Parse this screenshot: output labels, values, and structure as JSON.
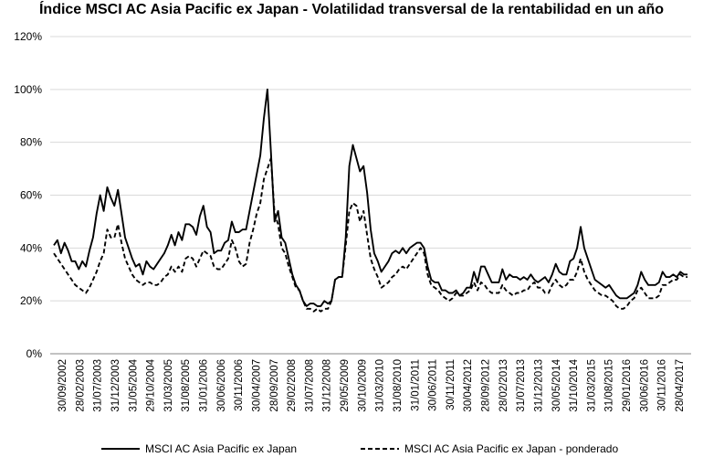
{
  "chart_data": {
    "type": "line",
    "title": "Índice MSCI AC Asia Pacific ex Japan - Volatilidad transversal de la rentabilidad en un año",
    "xlabel": "",
    "ylabel": "",
    "ylim": [
      0,
      120
    ],
    "yticks": [
      "0%",
      "20%",
      "40%",
      "60%",
      "80%",
      "100%",
      "120%"
    ],
    "xtick_labels": [
      "30/09/2002",
      "28/02/2003",
      "31/07/2003",
      "31/12/2003",
      "31/05/2004",
      "29/10/2004",
      "31/03/2005",
      "31/08/2005",
      "31/01/2006",
      "30/06/2006",
      "30/11/2006",
      "30/04/2007",
      "28/09/2007",
      "29/02/2008",
      "31/07/2008",
      "31/12/2008",
      "29/05/2009",
      "30/10/2009",
      "31/03/2010",
      "31/08/2010",
      "31/01/2011",
      "30/06/2011",
      "30/11/2011",
      "30/04/2012",
      "28/09/2012",
      "28/02/2013",
      "31/07/2013",
      "31/12/2013",
      "30/05/2014",
      "31/10/2014",
      "31/03/2015",
      "31/08/2015",
      "29/01/2016",
      "30/06/2016",
      "30/11/2016",
      "28/04/2017"
    ],
    "grid": true,
    "legend_position": "bottom",
    "series": [
      {
        "name": "MSCI AC Asia Pacific ex Japan",
        "style": "solid",
        "color": "#000000",
        "values": [
          41,
          43,
          38,
          42,
          39,
          35,
          35,
          32,
          35,
          33,
          39,
          44,
          53,
          60,
          54,
          63,
          59,
          56,
          62,
          53,
          44,
          40,
          36,
          33,
          34,
          30,
          35,
          33,
          32,
          34,
          36,
          38,
          41,
          45,
          41,
          46,
          43,
          49,
          49,
          48,
          45,
          52,
          56,
          48,
          46,
          38,
          39,
          39,
          42,
          43,
          50,
          46,
          46,
          47,
          47,
          54,
          61,
          68,
          75,
          89,
          100,
          76,
          50,
          54,
          44,
          42,
          36,
          30,
          26,
          24,
          20,
          18,
          19,
          19,
          18,
          18,
          20,
          19,
          20,
          28,
          29,
          29,
          44,
          71,
          79,
          74,
          69,
          71,
          61,
          47,
          38,
          35,
          31,
          33,
          35,
          38,
          39,
          38,
          40,
          38,
          40,
          41,
          42,
          42,
          40,
          33,
          28,
          27,
          27,
          24,
          24,
          23,
          23,
          24,
          22,
          23,
          25,
          25,
          31,
          27,
          33,
          33,
          30,
          27,
          27,
          27,
          32,
          28,
          30,
          29,
          29,
          28,
          29,
          28,
          30,
          28,
          27,
          28,
          29,
          27,
          30,
          34,
          31,
          30,
          30,
          35,
          36,
          40,
          48,
          40,
          36,
          32,
          28,
          27,
          26,
          25,
          26,
          24,
          22,
          21,
          21,
          21,
          22,
          23,
          26,
          31,
          28,
          26,
          26,
          26,
          27,
          31,
          29,
          29,
          30,
          29,
          31,
          30,
          30
        ]
      },
      {
        "name": "MSCI AC Asia Pacific ex Japan - ponderado",
        "style": "dashed",
        "color": "#000000",
        "values": [
          38,
          36,
          34,
          32,
          30,
          28,
          26,
          25,
          24,
          23,
          25,
          28,
          31,
          35,
          38,
          47,
          44,
          44,
          49,
          42,
          36,
          33,
          30,
          28,
          27,
          26,
          27,
          27,
          26,
          26,
          27,
          29,
          30,
          33,
          31,
          33,
          31,
          36,
          37,
          36,
          33,
          36,
          39,
          38,
          37,
          33,
          32,
          32,
          34,
          36,
          43,
          40,
          35,
          33,
          34,
          42,
          47,
          53,
          57,
          66,
          70,
          74,
          53,
          49,
          40,
          38,
          33,
          29,
          25,
          24,
          20,
          17,
          17,
          16,
          17,
          16,
          17,
          17,
          20,
          28,
          29,
          29,
          41,
          54,
          57,
          56,
          50,
          54,
          45,
          36,
          32,
          29,
          25,
          26,
          27,
          29,
          30,
          32,
          33,
          32,
          34,
          36,
          38,
          40,
          38,
          30,
          26,
          25,
          24,
          22,
          21,
          20,
          21,
          23,
          22,
          22,
          23,
          24,
          27,
          24,
          27,
          26,
          24,
          23,
          23,
          23,
          26,
          24,
          23,
          22,
          23,
          23,
          24,
          24,
          26,
          27,
          25,
          25,
          23,
          23,
          26,
          28,
          26,
          25,
          26,
          28,
          28,
          31,
          36,
          31,
          28,
          26,
          24,
          23,
          22,
          22,
          21,
          20,
          18,
          17,
          17,
          18,
          20,
          21,
          24,
          25,
          23,
          21,
          21,
          21,
          22,
          26,
          26,
          27,
          28,
          28,
          30,
          29,
          29
        ]
      }
    ]
  }
}
